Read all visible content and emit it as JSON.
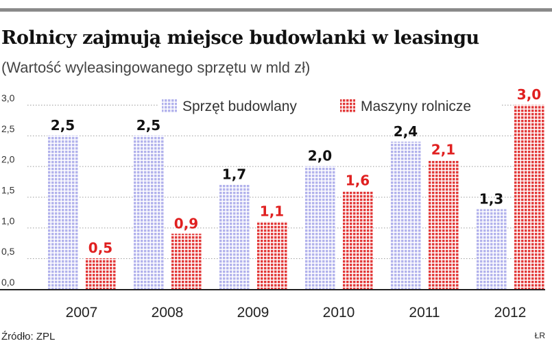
{
  "title": "Rolnicy zajmują miejsce budowlanki w leasingu",
  "subtitle": "(Wartość wyleasingowanego sprzętu w mld zł)",
  "source": "Źródło: ZPL",
  "author": "ŁR",
  "colors": {
    "budowlany": "#b9b9ee",
    "rolnicze": "#e23a3a",
    "label_budowlany": "#111111",
    "label_rolnicze": "#e02020"
  },
  "chart_data": {
    "type": "bar",
    "categories": [
      "2007",
      "2008",
      "2009",
      "2010",
      "2011",
      "2012"
    ],
    "series": [
      {
        "name": "Sprzęt budowlany",
        "values": [
          2.5,
          2.5,
          1.7,
          2.0,
          2.4,
          1.3
        ],
        "labels": [
          "2,5",
          "2,5",
          "1,7",
          "2,0",
          "2,4",
          "1,3"
        ]
      },
      {
        "name": "Maszyny rolnicze",
        "values": [
          0.5,
          0.9,
          1.1,
          1.6,
          2.1,
          3.0
        ],
        "labels": [
          "0,5",
          "0,9",
          "1,1",
          "1,6",
          "2,1",
          "3,0"
        ]
      }
    ],
    "yticks": [
      "0,0",
      "0,5",
      "1,0",
      "1,5",
      "2,0",
      "2,5",
      "3,0"
    ],
    "ylim": [
      0,
      3.0
    ],
    "grid": "dotted horizontal",
    "legend": "top"
  }
}
